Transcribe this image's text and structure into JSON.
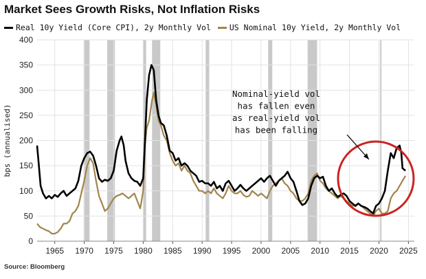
{
  "chart_data": {
    "type": "line",
    "title": "Market Sees Growth Risks, Not Inflation Risks",
    "ylabel": "bps (annualised)",
    "xlabel": "",
    "xlim": [
      1962,
      2026
    ],
    "ylim": [
      0,
      400
    ],
    "yticks": [
      0,
      50,
      100,
      150,
      200,
      250,
      300,
      350,
      400
    ],
    "xticks": [
      1965,
      1970,
      1975,
      1980,
      1985,
      1990,
      1995,
      2000,
      2005,
      2010,
      2015,
      2020,
      2025
    ],
    "grid": true,
    "legend_position": "top",
    "recessions": [
      [
        1969.9,
        1970.9
      ],
      [
        1973.9,
        1975.2
      ],
      [
        1980.0,
        1980.5
      ],
      [
        1981.5,
        1982.9
      ],
      [
        1990.6,
        1991.2
      ],
      [
        2001.2,
        2001.9
      ],
      [
        2007.9,
        2009.5
      ],
      [
        2020.2,
        2020.4
      ]
    ],
    "series": [
      {
        "name": "Real 10y Yield (Core CPI), 2y Monthly Vol",
        "color": "#000000",
        "points": [
          [
            1962.0,
            190
          ],
          [
            1962.3,
            150
          ],
          [
            1962.6,
            110
          ],
          [
            1963.0,
            95
          ],
          [
            1963.5,
            85
          ],
          [
            1964.0,
            90
          ],
          [
            1964.5,
            85
          ],
          [
            1965.0,
            92
          ],
          [
            1965.5,
            88
          ],
          [
            1966.0,
            95
          ],
          [
            1966.5,
            100
          ],
          [
            1967.0,
            90
          ],
          [
            1967.5,
            95
          ],
          [
            1968.0,
            100
          ],
          [
            1968.5,
            105
          ],
          [
            1969.0,
            120
          ],
          [
            1969.5,
            150
          ],
          [
            1970.0,
            165
          ],
          [
            1970.5,
            175
          ],
          [
            1971.0,
            178
          ],
          [
            1971.5,
            170
          ],
          [
            1972.0,
            150
          ],
          [
            1972.5,
            125
          ],
          [
            1973.0,
            118
          ],
          [
            1973.5,
            122
          ],
          [
            1974.0,
            120
          ],
          [
            1974.5,
            125
          ],
          [
            1975.0,
            140
          ],
          [
            1975.5,
            180
          ],
          [
            1976.0,
            200
          ],
          [
            1976.3,
            208
          ],
          [
            1976.7,
            190
          ],
          [
            1977.0,
            160
          ],
          [
            1977.5,
            135
          ],
          [
            1978.0,
            125
          ],
          [
            1978.5,
            120
          ],
          [
            1979.0,
            118
          ],
          [
            1979.5,
            110
          ],
          [
            1980.0,
            125
          ],
          [
            1980.3,
            200
          ],
          [
            1980.6,
            280
          ],
          [
            1981.0,
            330
          ],
          [
            1981.4,
            350
          ],
          [
            1981.8,
            340
          ],
          [
            1982.2,
            280
          ],
          [
            1982.6,
            250
          ],
          [
            1983.0,
            235
          ],
          [
            1983.5,
            230
          ],
          [
            1984.0,
            210
          ],
          [
            1984.5,
            180
          ],
          [
            1985.0,
            175
          ],
          [
            1985.5,
            160
          ],
          [
            1986.0,
            165
          ],
          [
            1986.5,
            150
          ],
          [
            1987.0,
            155
          ],
          [
            1987.5,
            150
          ],
          [
            1988.0,
            140
          ],
          [
            1988.5,
            135
          ],
          [
            1989.0,
            130
          ],
          [
            1989.5,
            118
          ],
          [
            1990.0,
            120
          ],
          [
            1990.5,
            115
          ],
          [
            1991.0,
            115
          ],
          [
            1991.5,
            110
          ],
          [
            1992.0,
            118
          ],
          [
            1992.5,
            105
          ],
          [
            1993.0,
            110
          ],
          [
            1993.5,
            100
          ],
          [
            1994.0,
            115
          ],
          [
            1994.5,
            120
          ],
          [
            1995.0,
            110
          ],
          [
            1995.5,
            100
          ],
          [
            1996.0,
            105
          ],
          [
            1996.5,
            112
          ],
          [
            1997.0,
            105
          ],
          [
            1997.5,
            100
          ],
          [
            1998.0,
            105
          ],
          [
            1998.5,
            110
          ],
          [
            1999.0,
            115
          ],
          [
            1999.5,
            120
          ],
          [
            2000.0,
            125
          ],
          [
            2000.5,
            118
          ],
          [
            2001.0,
            125
          ],
          [
            2001.5,
            130
          ],
          [
            2002.0,
            120
          ],
          [
            2002.5,
            110
          ],
          [
            2003.0,
            120
          ],
          [
            2003.5,
            125
          ],
          [
            2004.0,
            130
          ],
          [
            2004.5,
            138
          ],
          [
            2005.0,
            125
          ],
          [
            2005.5,
            118
          ],
          [
            2006.0,
            100
          ],
          [
            2006.5,
            80
          ],
          [
            2007.0,
            72
          ],
          [
            2007.5,
            75
          ],
          [
            2008.0,
            85
          ],
          [
            2008.5,
            110
          ],
          [
            2009.0,
            125
          ],
          [
            2009.5,
            130
          ],
          [
            2010.0,
            125
          ],
          [
            2010.5,
            128
          ],
          [
            2011.0,
            110
          ],
          [
            2011.5,
            100
          ],
          [
            2012.0,
            105
          ],
          [
            2012.5,
            95
          ],
          [
            2013.0,
            88
          ],
          [
            2013.5,
            92
          ],
          [
            2014.0,
            95
          ],
          [
            2014.5,
            90
          ],
          [
            2015.0,
            80
          ],
          [
            2015.5,
            75
          ],
          [
            2016.0,
            70
          ],
          [
            2016.5,
            75
          ],
          [
            2017.0,
            70
          ],
          [
            2017.5,
            68
          ],
          [
            2018.0,
            65
          ],
          [
            2018.5,
            60
          ],
          [
            2019.0,
            55
          ],
          [
            2019.5,
            70
          ],
          [
            2020.0,
            75
          ],
          [
            2020.5,
            85
          ],
          [
            2021.0,
            100
          ],
          [
            2021.5,
            140
          ],
          [
            2022.0,
            175
          ],
          [
            2022.5,
            165
          ],
          [
            2023.0,
            185
          ],
          [
            2023.5,
            190
          ],
          [
            2023.8,
            175
          ],
          [
            2024.0,
            145
          ],
          [
            2024.5,
            140
          ]
        ]
      },
      {
        "name": "US Nominal 10y Yield, 2y Monthly Vol",
        "color": "#a0844a",
        "points": [
          [
            1962.0,
            35
          ],
          [
            1962.5,
            28
          ],
          [
            1963.0,
            25
          ],
          [
            1963.5,
            22
          ],
          [
            1964.0,
            20
          ],
          [
            1964.5,
            15
          ],
          [
            1965.0,
            15
          ],
          [
            1965.5,
            18
          ],
          [
            1966.0,
            25
          ],
          [
            1966.5,
            35
          ],
          [
            1967.0,
            35
          ],
          [
            1967.5,
            40
          ],
          [
            1968.0,
            55
          ],
          [
            1968.5,
            60
          ],
          [
            1969.0,
            70
          ],
          [
            1969.5,
            95
          ],
          [
            1970.0,
            120
          ],
          [
            1970.5,
            150
          ],
          [
            1971.0,
            165
          ],
          [
            1971.5,
            155
          ],
          [
            1972.0,
            120
          ],
          [
            1972.5,
            90
          ],
          [
            1973.0,
            75
          ],
          [
            1973.5,
            60
          ],
          [
            1974.0,
            65
          ],
          [
            1974.5,
            75
          ],
          [
            1975.0,
            85
          ],
          [
            1975.5,
            90
          ],
          [
            1976.0,
            92
          ],
          [
            1976.5,
            95
          ],
          [
            1977.0,
            90
          ],
          [
            1977.5,
            85
          ],
          [
            1978.0,
            90
          ],
          [
            1978.5,
            95
          ],
          [
            1979.0,
            80
          ],
          [
            1979.5,
            65
          ],
          [
            1980.0,
            100
          ],
          [
            1980.3,
            190
          ],
          [
            1980.6,
            225
          ],
          [
            1981.0,
            240
          ],
          [
            1981.5,
            280
          ],
          [
            1981.8,
            295
          ],
          [
            1982.2,
            270
          ],
          [
            1982.6,
            240
          ],
          [
            1983.0,
            230
          ],
          [
            1983.5,
            210
          ],
          [
            1984.0,
            200
          ],
          [
            1984.5,
            175
          ],
          [
            1985.0,
            160
          ],
          [
            1985.5,
            150
          ],
          [
            1986.0,
            155
          ],
          [
            1986.5,
            140
          ],
          [
            1987.0,
            150
          ],
          [
            1987.5,
            140
          ],
          [
            1988.0,
            135
          ],
          [
            1988.5,
            120
          ],
          [
            1989.0,
            110
          ],
          [
            1989.5,
            100
          ],
          [
            1990.0,
            100
          ],
          [
            1990.5,
            95
          ],
          [
            1991.0,
            100
          ],
          [
            1991.5,
            95
          ],
          [
            1992.0,
            105
          ],
          [
            1992.5,
            95
          ],
          [
            1993.0,
            90
          ],
          [
            1993.5,
            85
          ],
          [
            1994.0,
            95
          ],
          [
            1994.5,
            110
          ],
          [
            1995.0,
            100
          ],
          [
            1995.5,
            95
          ],
          [
            1996.0,
            95
          ],
          [
            1996.5,
            100
          ],
          [
            1997.0,
            92
          ],
          [
            1997.5,
            88
          ],
          [
            1998.0,
            90
          ],
          [
            1998.5,
            100
          ],
          [
            1999.0,
            95
          ],
          [
            1999.5,
            90
          ],
          [
            2000.0,
            95
          ],
          [
            2000.5,
            90
          ],
          [
            2001.0,
            85
          ],
          [
            2001.5,
            100
          ],
          [
            2002.0,
            110
          ],
          [
            2002.5,
            115
          ],
          [
            2003.0,
            120
          ],
          [
            2003.5,
            125
          ],
          [
            2004.0,
            115
          ],
          [
            2004.5,
            110
          ],
          [
            2005.0,
            100
          ],
          [
            2005.5,
            95
          ],
          [
            2006.0,
            85
          ],
          [
            2006.5,
            80
          ],
          [
            2007.0,
            80
          ],
          [
            2007.5,
            85
          ],
          [
            2008.0,
            95
          ],
          [
            2008.5,
            120
          ],
          [
            2009.0,
            130
          ],
          [
            2009.5,
            135
          ],
          [
            2010.0,
            120
          ],
          [
            2010.5,
            115
          ],
          [
            2011.0,
            105
          ],
          [
            2011.5,
            100
          ],
          [
            2012.0,
            95
          ],
          [
            2012.5,
            90
          ],
          [
            2013.0,
            85
          ],
          [
            2013.5,
            90
          ],
          [
            2014.0,
            85
          ],
          [
            2014.5,
            80
          ],
          [
            2015.0,
            75
          ],
          [
            2015.5,
            70
          ],
          [
            2016.0,
            72
          ],
          [
            2016.5,
            75
          ],
          [
            2017.0,
            70
          ],
          [
            2017.5,
            65
          ],
          [
            2018.0,
            60
          ],
          [
            2018.5,
            55
          ],
          [
            2019.0,
            50
          ],
          [
            2019.5,
            60
          ],
          [
            2020.0,
            65
          ],
          [
            2020.5,
            55
          ],
          [
            2021.0,
            55
          ],
          [
            2021.5,
            60
          ],
          [
            2022.0,
            85
          ],
          [
            2022.5,
            95
          ],
          [
            2023.0,
            100
          ],
          [
            2023.5,
            110
          ],
          [
            2024.0,
            120
          ],
          [
            2024.5,
            130
          ]
        ]
      }
    ],
    "annotation": {
      "lines": [
        "Nominal-yield vol",
        "has fallen even",
        "as real-yield vol",
        "has been falling"
      ]
    }
  },
  "source": "Source: Bloomberg",
  "colors": {
    "real": "#000000",
    "nominal": "#a0844a",
    "recession": "#c9c9c9",
    "circle": "#cc2222",
    "grid": "#e2e2e2"
  }
}
